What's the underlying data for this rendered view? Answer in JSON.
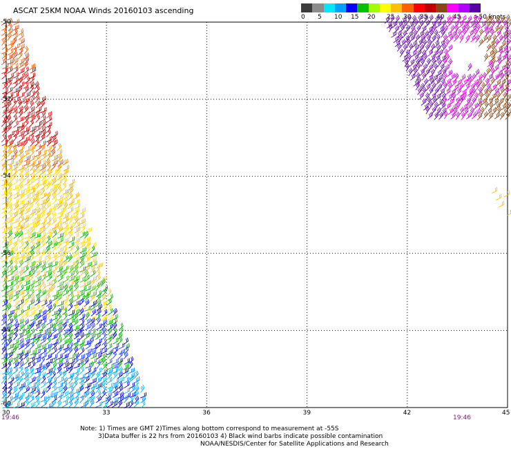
{
  "title": "ASCAT 25KM NOAA Winds 20160103 ascending",
  "colorbar": {
    "colors": [
      "#3c3c3c",
      "#8c8c8c",
      "#00e8ff",
      "#00a0ff",
      "#0000ff",
      "#00c000",
      "#a0ff00",
      "#ffff00",
      "#ffc000",
      "#ff6000",
      "#ff0000",
      "#c00000",
      "#8b4513",
      "#ff00ff",
      "#b000ff",
      "#5a00a0"
    ],
    "labels": [
      "0",
      "5",
      "10",
      "15",
      "20",
      "25",
      "30",
      "35",
      "40",
      "45",
      ">50 knots"
    ]
  },
  "map": {
    "lon_range": [
      30,
      45
    ],
    "lat_range": [
      -60,
      -50
    ],
    "x_ticks": [
      "30",
      "33",
      "36",
      "39",
      "42",
      "45"
    ],
    "y_ticks": [
      "-50",
      "-52",
      "-54",
      "-56",
      "-58",
      "-60"
    ],
    "gridlines": true
  },
  "times": {
    "left": "19:46",
    "right": "19:46"
  },
  "notes": {
    "line1": "Note: 1) Times are GMT 2)Times along bottom correspond to measurement at -55S",
    "line2": "3)Data buffer is 22 hrs from 20160103 4) Black wind barbs indicate possible contamination",
    "line3": "NOAA/NESDIS/Center for Satellite Applications and Research"
  }
}
